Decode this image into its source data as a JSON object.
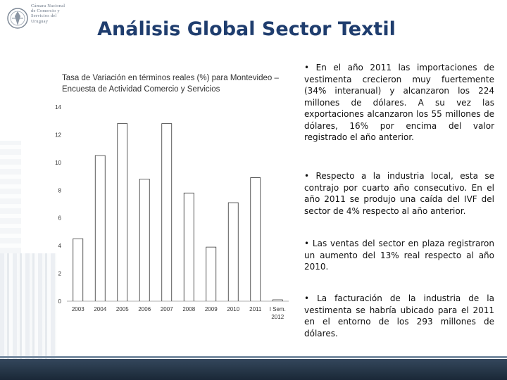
{
  "header": {
    "title": "Análisis Global Sector Textil",
    "logo_text": "Cámara Nacional\nde Comercio y\nServicios del\nUruguay"
  },
  "chart_caption": "Tasa de Variación en términos reales (%) para Montevideo – Encuesta de Actividad Comercio y Servicios",
  "chart_data": {
    "type": "bar",
    "title": "Tasa de Variación en términos reales (%) para Montevideo – Encuesta de Actividad Comercio y Servicios",
    "categories": [
      "2003",
      "2004",
      "2005",
      "2006",
      "2007",
      "2008",
      "2009",
      "2010",
      "2011",
      "I Sem. 2012"
    ],
    "values": [
      4.5,
      10.5,
      12.8,
      8.8,
      12.8,
      7.8,
      3.9,
      7.1,
      8.9,
      0.1
    ],
    "ylim": [
      0,
      14
    ],
    "yticks": [
      0,
      2,
      4,
      6,
      8,
      10,
      12,
      14
    ],
    "xlabel": "",
    "ylabel": "",
    "grid": false,
    "colors": {
      "bar_line": "#333333",
      "axis": "#999999"
    }
  },
  "bullets": [
    "• En el año 2011 las importaciones de vestimenta crecieron muy fuertemente (34% interanual) y alcanzaron los 224 millones de dólares. A su vez las exportaciones alcanzaron los 55 millones de dólares, 16% por encima del valor registrado el año anterior.",
    "• Respecto a la industria local, esta se contrajo por cuarto año consecutivo. En el año 2011 se produjo una caída del IVF del sector de 4% respecto al año anterior.",
    "• Las ventas del sector en plaza registraron un aumento del 13% real respecto al año 2010.",
    "• La facturación de la industria de la vestimenta se habría ubicado para el 2011 en el entorno de los 293 millones de dólares."
  ]
}
